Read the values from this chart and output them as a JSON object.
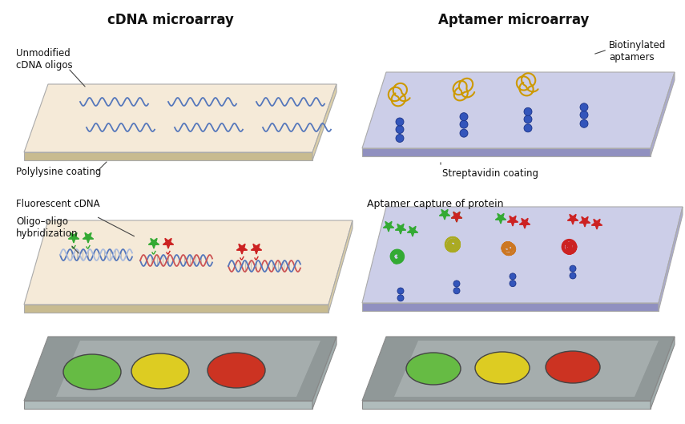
{
  "title_left": "cDNA microarray",
  "title_right": "Aptamer microarray",
  "label_unmodified": "Unmodified\ncDNA oligos",
  "label_polylysine": "Polylysine coating",
  "label_biotinylated": "Biotinylated\naptamers",
  "label_streptavidin": "Streptavidin coating",
  "label_fluorescent": "Fluorescent cDNA",
  "label_hybridization": "Oligo–oligo\nhybridization",
  "label_aptamer_capture": "Aptamer capture of protein",
  "bg_color": "#ffffff",
  "panel_top_left_color": "#f5ead8",
  "panel_top_right_color": "#cccee8",
  "panel_result_color": "#909898",
  "dna_wave_color": "#5577bb",
  "aptamer_color": "#cc9900",
  "streptavidin_color": "#3a5a9a",
  "green_star_color": "#33aa33",
  "red_star_color": "#cc2222",
  "green_protein_color": "#33aa33",
  "orange_protein_color": "#cc7722",
  "red_protein_color": "#cc2222",
  "result_green": "#66bb44",
  "result_yellow": "#ddcc22",
  "result_red": "#cc3322",
  "title_fontsize": 12,
  "label_fontsize": 8.5
}
